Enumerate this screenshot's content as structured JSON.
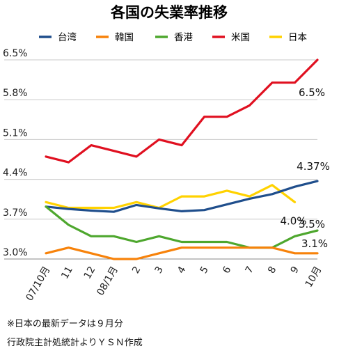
{
  "chart_data": {
    "type": "line",
    "title": "各国の失業率推移",
    "categories": [
      "07/10月",
      "11",
      "12",
      "08/1月",
      "2",
      "3",
      "4",
      "5",
      "6",
      "7",
      "8",
      "9",
      "10月"
    ],
    "y_tick_labels": [
      "3.0%",
      "3.7%",
      "4.4%",
      "5.1%",
      "5.8%",
      "6.5%"
    ],
    "ylim": [
      3.0,
      6.5
    ],
    "grid": "horizontal",
    "legend_position": "top",
    "series": [
      {
        "name": "台湾",
        "color": "#1f4e8c",
        "values": [
          3.92,
          3.88,
          3.85,
          3.83,
          3.95,
          3.89,
          3.84,
          3.86,
          3.96,
          4.06,
          4.14,
          4.27,
          4.37
        ]
      },
      {
        "name": "韓国",
        "color": "#f7820a",
        "values": [
          3.1,
          3.2,
          3.1,
          3.0,
          3.0,
          3.1,
          3.2,
          3.2,
          3.2,
          3.2,
          3.2,
          3.1,
          3.1
        ]
      },
      {
        "name": "香港",
        "color": "#4ea72e",
        "values": [
          3.92,
          3.6,
          3.4,
          3.4,
          3.3,
          3.4,
          3.3,
          3.3,
          3.3,
          3.2,
          3.2,
          3.4,
          3.5
        ]
      },
      {
        "name": "米国",
        "color": "#e01020",
        "values": [
          4.8,
          4.7,
          5.0,
          4.9,
          4.8,
          5.1,
          5.0,
          5.5,
          5.5,
          5.7,
          6.1,
          6.1,
          6.5
        ]
      },
      {
        "name": "日本",
        "color": "#ffd200",
        "values": [
          4.0,
          3.9,
          3.9,
          3.9,
          4.0,
          3.9,
          4.1,
          4.1,
          4.2,
          4.1,
          4.3,
          4.0,
          null
        ]
      }
    ],
    "data_labels": [
      {
        "text": "6.5%",
        "series": "米国",
        "index": 12
      },
      {
        "text": "4.37%",
        "series": "台湾",
        "index": 12
      },
      {
        "text": "4.0%",
        "series": "日本",
        "index": 11
      },
      {
        "text": "3.5%",
        "series": "香港",
        "index": 12
      },
      {
        "text": "3.1%",
        "series": "韓国",
        "index": 12
      }
    ]
  },
  "notes": {
    "line1": "※日本の最新データは９月分",
    "line2": "行政院主計処統計よりＹＳＮ作成"
  }
}
